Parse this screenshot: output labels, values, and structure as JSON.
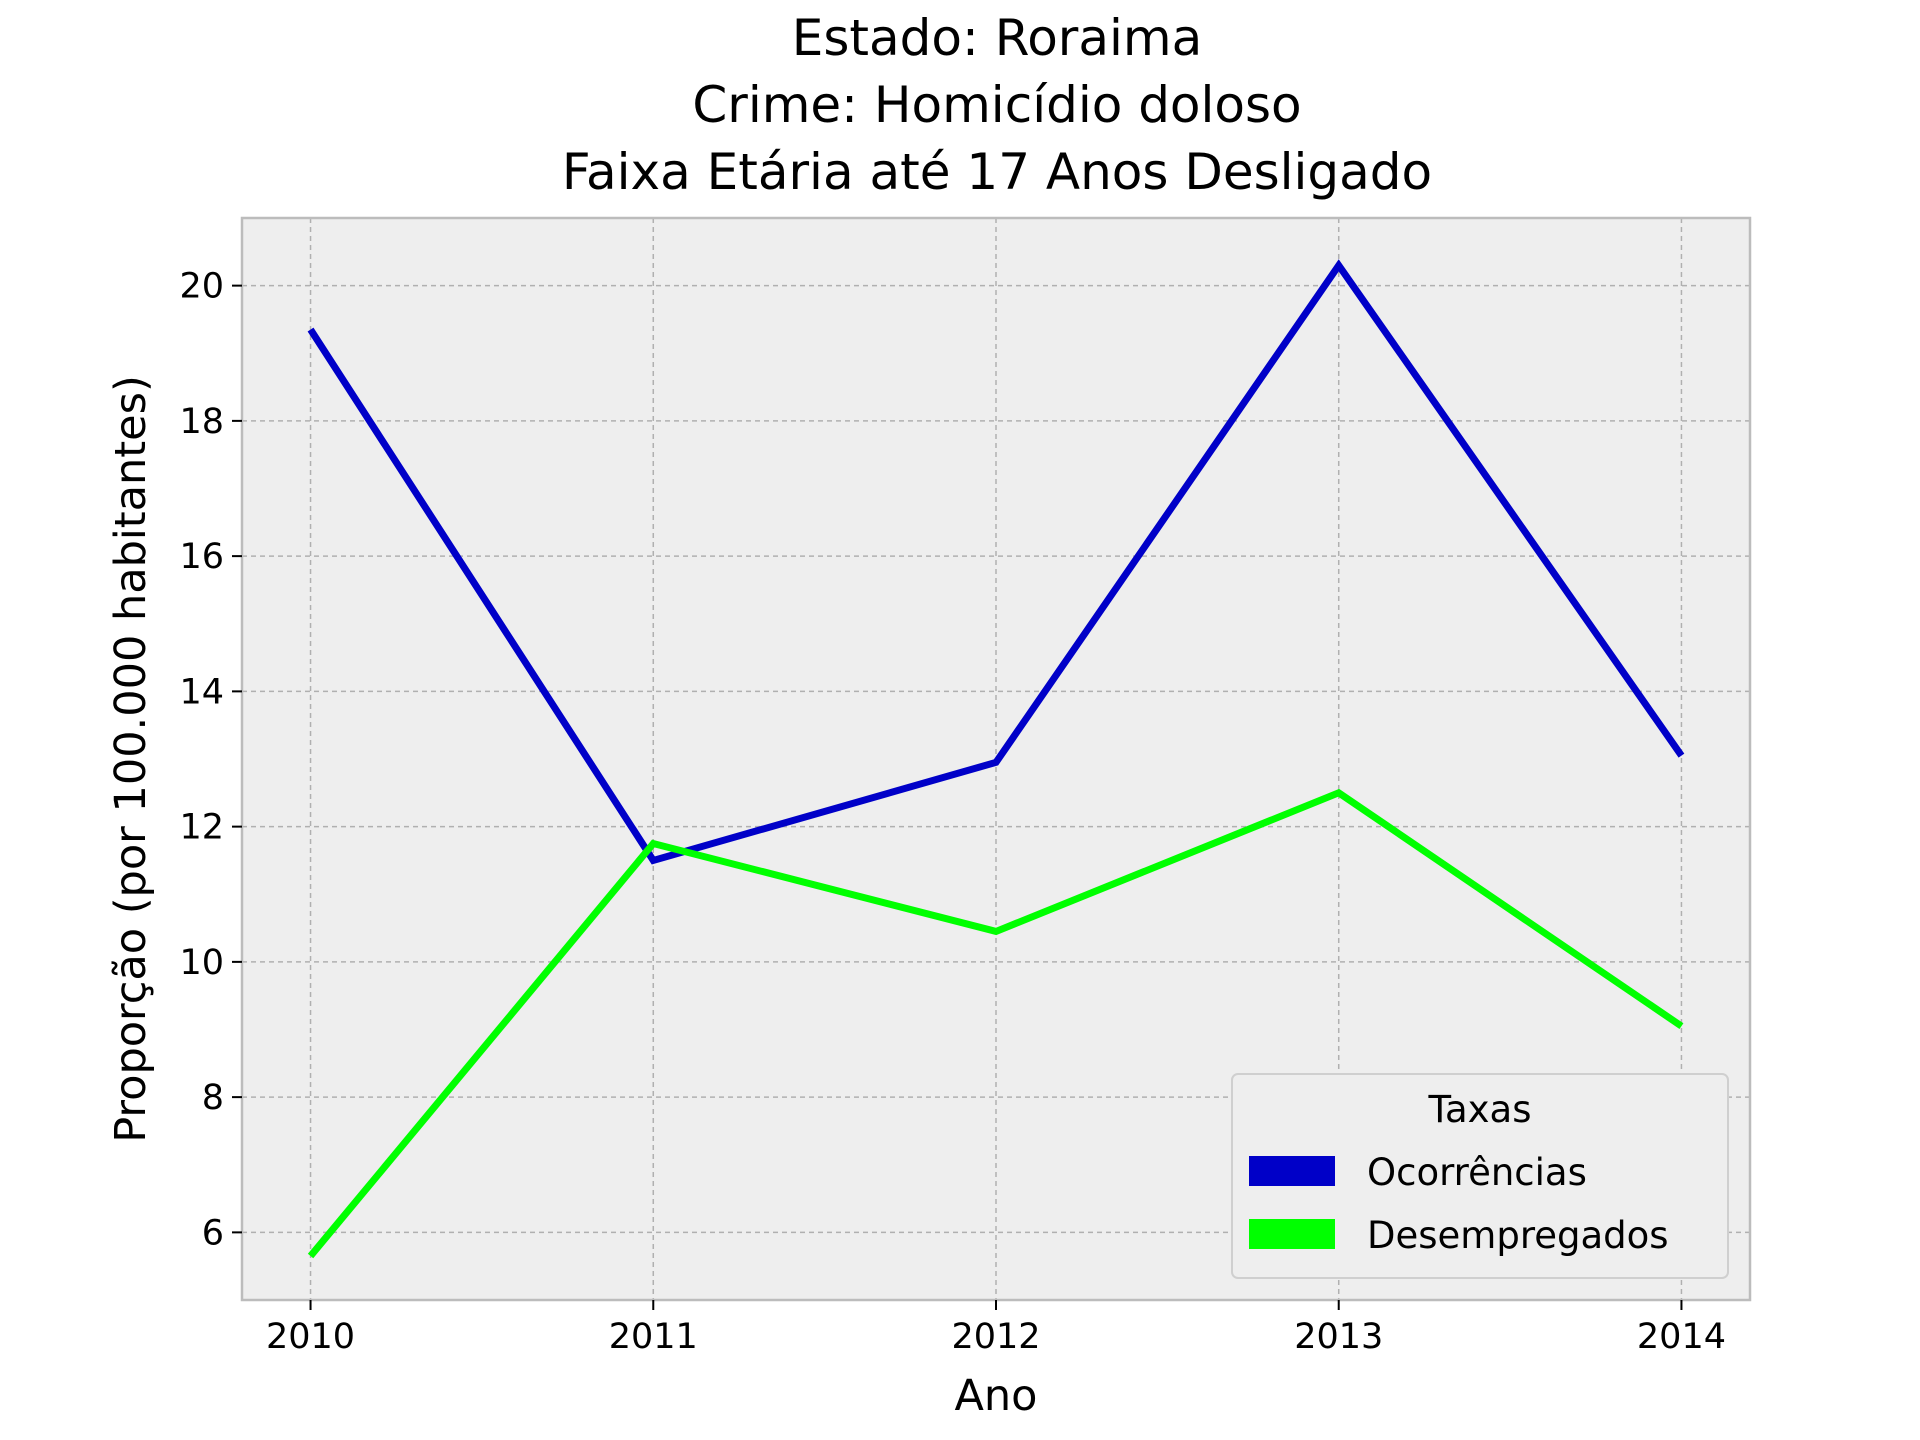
{
  "chart_data": {
    "type": "line",
    "title_lines": [
      "Estado: Roraima",
      "Crime: Homicídio doloso",
      "Faixa Etária até 17 Anos   Desligado"
    ],
    "xlabel": "Ano",
    "ylabel": "Proporção (por 100.000 habitantes)",
    "x": [
      2010,
      2011,
      2012,
      2013,
      2014
    ],
    "x_tick_labels": [
      "2010",
      "2011",
      "2012",
      "2013",
      "2014"
    ],
    "y_ticks": [
      6,
      8,
      10,
      12,
      14,
      16,
      18,
      20
    ],
    "y_tick_labels": [
      "6",
      "8",
      "10",
      "12",
      "14",
      "16",
      "18",
      "20"
    ],
    "xlim": [
      2009.8,
      2014.2
    ],
    "ylim": [
      5.0,
      21.0
    ],
    "grid": true,
    "legend": {
      "title": "Taxas",
      "placement": "lower-right"
    },
    "series": [
      {
        "name": "Ocorrências",
        "color": "#0000c8",
        "values": [
          19.35,
          11.5,
          12.95,
          20.3,
          13.05
        ]
      },
      {
        "name": "Desempregados",
        "color": "#00ff00",
        "values": [
          5.65,
          11.75,
          10.45,
          12.5,
          9.05
        ]
      }
    ],
    "colors": {
      "plot_background": "#eeeeee",
      "grid": "#b0b0b0",
      "frame": "#bcbcbc"
    }
  }
}
